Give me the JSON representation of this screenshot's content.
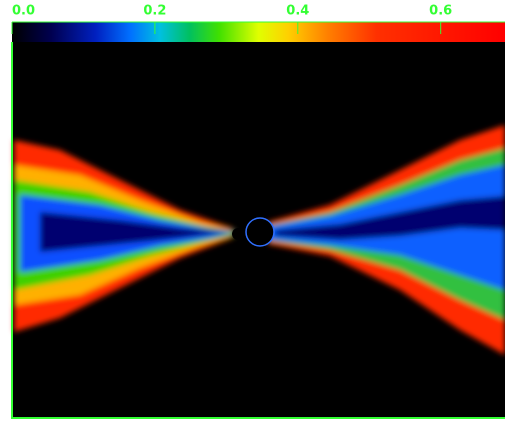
{
  "chart_data": {
    "type": "image",
    "colorbar": {
      "xlim": [
        0,
        0.69
      ],
      "xticks": [
        {
          "value": 0,
          "label": "0.0"
        },
        0.2,
        0.4,
        0.6
      ],
      "color": "#33ff33"
    }
  }
}
